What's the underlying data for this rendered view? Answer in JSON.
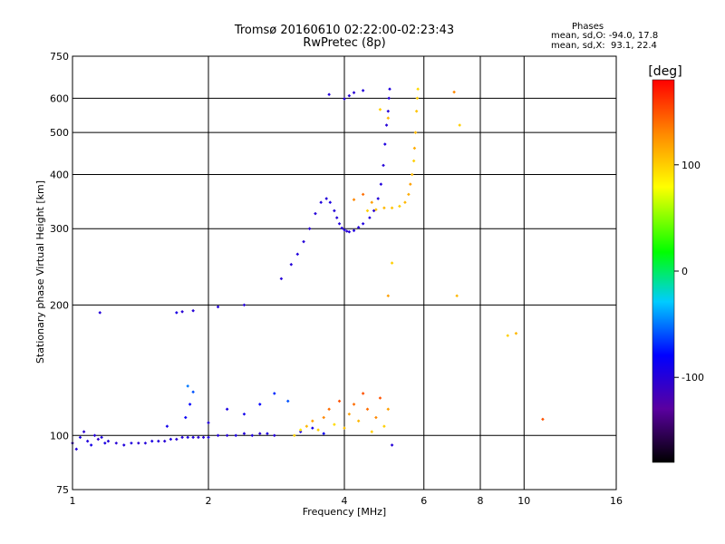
{
  "header": {
    "title_line1": "Tromsø 20160610 02:22:00-02:23:43",
    "title_line2": "RwPretec (8p)"
  },
  "stats": {
    "heading": "Phases",
    "line_o": "mean, sd,O: -94.0, 17.8",
    "line_x": "mean, sd,X:  93.1, 22.4"
  },
  "colorbar": {
    "unit": "[deg]",
    "ticks": [
      {
        "value": 100,
        "label": "100"
      },
      {
        "value": 0,
        "label": "0"
      },
      {
        "value": -100,
        "label": "-100"
      }
    ],
    "range": [
      -180,
      180
    ]
  },
  "chart_data": {
    "type": "scatter",
    "title": "Tromsø 20160610 02:22:00-02:23:43",
    "subtitle": "RwPretec (8p)",
    "xlabel": "Frequency [MHz]",
    "ylabel": "Stationary phase Virtual Height [km]",
    "xscale": "log",
    "yscale": "log",
    "xlim": [
      1,
      16
    ],
    "ylim": [
      75,
      750
    ],
    "xticks": [
      1,
      2,
      4,
      6,
      8,
      10,
      16
    ],
    "xtick_labels": [
      "1",
      "2",
      "4",
      "6",
      "8",
      "10",
      "16"
    ],
    "yticks": [
      75,
      100,
      200,
      300,
      400,
      500,
      600,
      750
    ],
    "ytick_labels": [
      "75",
      "100",
      "200",
      "300",
      "400",
      "500",
      "600",
      "750"
    ],
    "grid": true,
    "color_by": "phase [deg]",
    "series": [
      {
        "mode": "O",
        "points": [
          [
            1.0,
            96,
            -110
          ],
          [
            1.02,
            93,
            -100
          ],
          [
            1.04,
            99,
            -95
          ],
          [
            1.06,
            102,
            -105
          ],
          [
            1.08,
            97,
            -98
          ],
          [
            1.1,
            95,
            -92
          ],
          [
            1.12,
            100,
            -100
          ],
          [
            1.14,
            98,
            -108
          ],
          [
            1.16,
            99,
            -97
          ],
          [
            1.18,
            96,
            -95
          ],
          [
            1.2,
            97,
            -100
          ],
          [
            1.25,
            96,
            -102
          ],
          [
            1.3,
            95,
            -98
          ],
          [
            1.35,
            96,
            -96
          ],
          [
            1.4,
            96,
            -104
          ],
          [
            1.45,
            96,
            -100
          ],
          [
            1.5,
            97,
            -95
          ],
          [
            1.55,
            97,
            -99
          ],
          [
            1.6,
            97,
            -101
          ],
          [
            1.65,
            98,
            -97
          ],
          [
            1.7,
            98,
            -103
          ],
          [
            1.75,
            99,
            -100
          ],
          [
            1.8,
            99,
            -96
          ],
          [
            1.85,
            99,
            -98
          ],
          [
            1.9,
            99,
            -102
          ],
          [
            1.95,
            99,
            -100
          ],
          [
            2.0,
            99,
            -97
          ],
          [
            2.1,
            100,
            -99
          ],
          [
            2.2,
            100,
            -101
          ],
          [
            2.3,
            100,
            -96
          ],
          [
            2.4,
            101,
            -100
          ],
          [
            2.5,
            100,
            -98
          ],
          [
            2.6,
            101,
            -103
          ],
          [
            2.7,
            101,
            -97
          ],
          [
            2.8,
            100,
            -99
          ],
          [
            1.15,
            192,
            -100
          ],
          [
            1.7,
            192,
            -95
          ],
          [
            1.75,
            193,
            -102
          ],
          [
            1.85,
            194,
            -100
          ],
          [
            2.1,
            198,
            -98
          ],
          [
            2.4,
            200,
            -100
          ],
          [
            1.62,
            105,
            -90
          ],
          [
            1.78,
            110,
            -85
          ],
          [
            1.82,
            118,
            -80
          ],
          [
            1.85,
            126,
            -60
          ],
          [
            1.8,
            130,
            -50
          ],
          [
            2.0,
            107,
            -100
          ],
          [
            2.2,
            115,
            -95
          ],
          [
            2.4,
            112,
            -90
          ],
          [
            2.6,
            118,
            -80
          ],
          [
            2.8,
            125,
            -70
          ],
          [
            3.0,
            120,
            -60
          ],
          [
            2.9,
            230,
            -100
          ],
          [
            3.05,
            248,
            -100
          ],
          [
            3.15,
            262,
            -98
          ],
          [
            3.25,
            280,
            -100
          ],
          [
            3.35,
            300,
            -102
          ],
          [
            3.45,
            325,
            -100
          ],
          [
            3.55,
            345,
            -98
          ],
          [
            3.65,
            352,
            -100
          ],
          [
            3.72,
            345,
            -96
          ],
          [
            3.8,
            330,
            -100
          ],
          [
            3.85,
            318,
            -101
          ],
          [
            3.9,
            308,
            -98
          ],
          [
            3.95,
            301,
            -100
          ],
          [
            4.0,
            298,
            -99
          ],
          [
            4.05,
            296,
            -102
          ],
          [
            4.1,
            295,
            -100
          ],
          [
            4.2,
            297,
            -98
          ],
          [
            4.3,
            302,
            -100
          ],
          [
            4.4,
            308,
            -97
          ],
          [
            4.55,
            318,
            -100
          ],
          [
            4.65,
            330,
            -103
          ],
          [
            4.75,
            352,
            -100
          ],
          [
            4.82,
            380,
            -98
          ],
          [
            4.88,
            420,
            -100
          ],
          [
            4.92,
            470,
            -96
          ],
          [
            4.96,
            520,
            -100
          ],
          [
            5.0,
            560,
            -101
          ],
          [
            5.02,
            600,
            -100
          ],
          [
            5.04,
            630,
            -98
          ],
          [
            4.0,
            598,
            -100
          ],
          [
            4.1,
            608,
            -100
          ],
          [
            4.2,
            618,
            -102
          ],
          [
            3.7,
            612,
            -100
          ],
          [
            4.4,
            625,
            -98
          ],
          [
            5.1,
            95,
            -100
          ],
          [
            3.2,
            102,
            -95
          ],
          [
            3.4,
            104,
            -90
          ],
          [
            3.6,
            101,
            -88
          ]
        ]
      },
      {
        "mode": "X",
        "points": [
          [
            3.1,
            100,
            100
          ],
          [
            3.2,
            103,
            90
          ],
          [
            3.3,
            105,
            110
          ],
          [
            3.4,
            108,
            120
          ],
          [
            3.5,
            103,
            100
          ],
          [
            3.6,
            110,
            130
          ],
          [
            3.7,
            115,
            140
          ],
          [
            3.8,
            106,
            95
          ],
          [
            3.9,
            120,
            150
          ],
          [
            4.0,
            104,
            105
          ],
          [
            4.1,
            112,
            120
          ],
          [
            4.2,
            118,
            140
          ],
          [
            4.3,
            108,
            110
          ],
          [
            4.4,
            125,
            150
          ],
          [
            4.5,
            115,
            140
          ],
          [
            4.6,
            102,
            100
          ],
          [
            4.7,
            110,
            130
          ],
          [
            4.8,
            122,
            150
          ],
          [
            4.9,
            105,
            100
          ],
          [
            5.0,
            115,
            120
          ],
          [
            4.5,
            330,
            100
          ],
          [
            4.7,
            332,
            105
          ],
          [
            4.9,
            335,
            110
          ],
          [
            5.1,
            335,
            105
          ],
          [
            5.3,
            338,
            100
          ],
          [
            5.45,
            345,
            110
          ],
          [
            5.55,
            360,
            115
          ],
          [
            5.6,
            380,
            120
          ],
          [
            5.65,
            400,
            110
          ],
          [
            5.7,
            430,
            100
          ],
          [
            5.72,
            460,
            115
          ],
          [
            5.75,
            500,
            110
          ],
          [
            5.78,
            560,
            105
          ],
          [
            5.8,
            600,
            100
          ],
          [
            5.82,
            630,
            95
          ],
          [
            4.2,
            350,
            130
          ],
          [
            4.4,
            360,
            140
          ],
          [
            4.6,
            345,
            120
          ],
          [
            4.8,
            565,
            100
          ],
          [
            5.0,
            540,
            110
          ],
          [
            5.1,
            250,
            100
          ],
          [
            5.0,
            210,
            120
          ],
          [
            7.0,
            620,
            130
          ],
          [
            7.1,
            210,
            110
          ],
          [
            7.2,
            520,
            100
          ],
          [
            9.2,
            170,
            100
          ],
          [
            9.6,
            172,
            110
          ],
          [
            11.0,
            109,
            150
          ]
        ]
      }
    ]
  }
}
